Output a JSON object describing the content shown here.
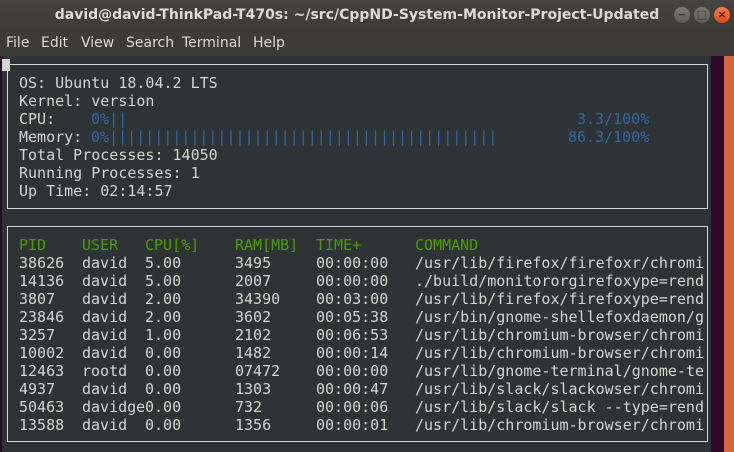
{
  "window": {
    "title": "david@david-ThinkPad-T470s: ~/src/CppND-System-Monitor-Project-Updated",
    "buttons": [
      "minimize",
      "maximize",
      "close"
    ]
  },
  "menu": [
    "File",
    "Edit",
    "View",
    "Search",
    "Terminal",
    "Help"
  ],
  "system": {
    "os": "OS: Ubuntu 18.04.2 LTS",
    "kernel": "Kernel: version",
    "cpu_label": "CPU:",
    "cpu_prefix": "0%",
    "cpu_percent": 3.3,
    "cpu_text": "3.3/100%",
    "mem_label": "Memory:",
    "mem_prefix": "0%",
    "mem_percent": 86.3,
    "mem_text": "86.3/100%",
    "total": "Total Processes: 14050",
    "running": "Running Processes: 1",
    "uptime": "Up Time: 02:14:57"
  },
  "colors": {
    "terminal_bg": "#2e3436",
    "text": "#d3d7cf",
    "bar": "#3465a4",
    "header": "#4e9a06"
  },
  "processes": {
    "headers": [
      "PID",
      "USER",
      "CPU[%]",
      "RAM[MB]",
      "TIME+",
      "COMMAND"
    ],
    "rows": [
      [
        "38626",
        "david",
        "5.00",
        "3495",
        "00:00:00",
        "/usr/lib/firefox/firefoxr/chromi"
      ],
      [
        "14136",
        "david",
        "5.00",
        "2007",
        "00:00:00",
        "./build/monitororgirefoxype=rend"
      ],
      [
        "3807",
        "david",
        "2.00",
        "34390",
        "00:03:00",
        "/usr/lib/firefox/firefoxype=rend"
      ],
      [
        "23846",
        "david",
        "2.00",
        "3602",
        "00:05:38",
        "/usr/bin/gnome-shellefoxdaemon/g"
      ],
      [
        "3257",
        "david",
        "1.00",
        "2102",
        "00:06:53",
        "/usr/lib/chromium-browser/chromi"
      ],
      [
        "10002",
        "david",
        "0.00",
        "1482",
        "00:00:14",
        "/usr/lib/chromium-browser/chromi"
      ],
      [
        "12463",
        "rootd",
        "0.00",
        "07472",
        "00:00:00",
        "/usr/lib/gnome-terminal/gnome-te"
      ],
      [
        "4937",
        "david",
        "0.00",
        "1303",
        "00:00:47",
        "/usr/lib/slack/slackowser/chromi"
      ],
      [
        "50463",
        "davidge",
        "0.00",
        "732",
        "00:00:06",
        "/usr/lib/slack/slack --type=rend"
      ],
      [
        "13588",
        "david",
        "0.00",
        "1356",
        "00:00:01",
        "/usr/lib/chromium-browser/chromi"
      ]
    ]
  }
}
